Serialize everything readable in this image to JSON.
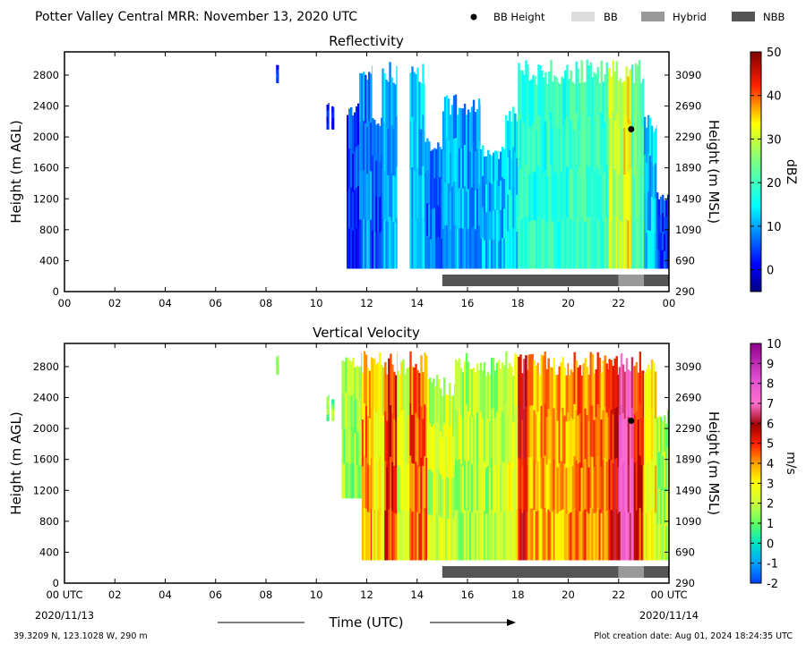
{
  "header": {
    "title": "Potter Valley Central MRR:  November 13, 2020 UTC",
    "legend": [
      {
        "label": "BB Height",
        "kind": "dot",
        "color": "#000000"
      },
      {
        "label": "BB",
        "kind": "swatch",
        "color": "#dddddd"
      },
      {
        "label": "Hybrid",
        "kind": "swatch",
        "color": "#999999"
      },
      {
        "label": "NBB",
        "kind": "swatch",
        "color": "#555555"
      }
    ]
  },
  "footer": {
    "location": "39.3209 N, 123.1028 W, 290 m",
    "created": "Plot creation date: Aug 01, 2024 18:24:35 UTC",
    "xlabel": "Time (UTC)",
    "start_date": "2020/11/13",
    "end_date": "2020/11/14"
  },
  "colors": {
    "bb": "#dddddd",
    "hybrid": "#999999",
    "nbb": "#555555",
    "bb_dot": "#000000"
  },
  "chart_data": [
    {
      "type": "heatmap",
      "title": "Reflectivity",
      "ylabel": "Height (m AGL)",
      "ylabel_right": "Height (m MSL)",
      "colorbar_label": "dBZ",
      "xlim": [
        0,
        24
      ],
      "ylim": [
        0,
        3100
      ],
      "x_ticks": [
        "00",
        "02",
        "04",
        "06",
        "08",
        "10",
        "12",
        "14",
        "16",
        "18",
        "20",
        "22",
        "00"
      ],
      "y_ticks": [
        0,
        400,
        800,
        1200,
        1600,
        2000,
        2400,
        2800
      ],
      "y_ticks_right": [
        290,
        690,
        1090,
        1490,
        1890,
        2290,
        2690,
        3090
      ],
      "colorbar_ticks": [
        0,
        10,
        20,
        30,
        40,
        50
      ],
      "colorbar_range": [
        -5,
        50
      ],
      "colormap": "jet",
      "echo_segments": [
        {
          "start": 8.4,
          "end": 8.5,
          "base": 2700,
          "top": 2950,
          "value": 2
        },
        {
          "start": 10.4,
          "end": 10.5,
          "base": 2100,
          "top": 2450,
          "value": 2
        },
        {
          "start": 10.6,
          "end": 10.7,
          "base": 2100,
          "top": 2400,
          "value": 1
        },
        {
          "start": 11.2,
          "end": 11.7,
          "base": 300,
          "top": 2500,
          "value": 4
        },
        {
          "start": 11.7,
          "end": 12.2,
          "base": 300,
          "top": 3000,
          "value": 8
        },
        {
          "start": 12.2,
          "end": 12.6,
          "base": 300,
          "top": 2300,
          "value": 5
        },
        {
          "start": 12.6,
          "end": 13.2,
          "base": 300,
          "top": 3000,
          "value": 11
        },
        {
          "start": 13.7,
          "end": 14.3,
          "base": 300,
          "top": 3000,
          "value": 12
        },
        {
          "start": 14.3,
          "end": 15.0,
          "base": 300,
          "top": 2000,
          "value": 7
        },
        {
          "start": 15.0,
          "end": 16.5,
          "base": 300,
          "top": 2550,
          "value": 10
        },
        {
          "start": 16.5,
          "end": 17.5,
          "base": 300,
          "top": 1900,
          "value": 11
        },
        {
          "start": 17.5,
          "end": 18.0,
          "base": 300,
          "top": 2400,
          "value": 14
        },
        {
          "start": 18.0,
          "end": 20.0,
          "base": 300,
          "top": 3000,
          "value": 18
        },
        {
          "start": 20.0,
          "end": 21.6,
          "base": 300,
          "top": 3000,
          "value": 20
        },
        {
          "start": 21.6,
          "end": 22.2,
          "base": 300,
          "top": 3000,
          "value": 30
        },
        {
          "start": 22.2,
          "end": 22.5,
          "base": 300,
          "top": 3000,
          "value": 33
        },
        {
          "start": 22.5,
          "end": 23.0,
          "base": 300,
          "top": 3000,
          "value": 22
        },
        {
          "start": 23.0,
          "end": 23.5,
          "base": 300,
          "top": 2300,
          "value": 12
        },
        {
          "start": 23.5,
          "end": 24.0,
          "base": 300,
          "top": 1300,
          "value": 4
        }
      ],
      "bb_height": [
        {
          "time": 22.5,
          "height": 2100
        }
      ],
      "bb_class": [
        {
          "start": 15.0,
          "end": 22.0,
          "type": "NBB"
        },
        {
          "start": 22.0,
          "end": 23.0,
          "type": "Hybrid"
        },
        {
          "start": 23.0,
          "end": 24.0,
          "type": "NBB"
        }
      ]
    },
    {
      "type": "heatmap",
      "title": "Vertical Velocity",
      "ylabel": "Height (m AGL)",
      "ylabel_right": "Height (m MSL)",
      "colorbar_label": "m/s",
      "xlim": [
        0,
        24
      ],
      "ylim": [
        0,
        3100
      ],
      "x_ticks": [
        "00 UTC",
        "02",
        "04",
        "06",
        "08",
        "10",
        "12",
        "14",
        "16",
        "18",
        "20",
        "22",
        "00 UTC"
      ],
      "y_ticks": [
        0,
        400,
        800,
        1200,
        1600,
        2000,
        2400,
        2800
      ],
      "y_ticks_right": [
        290,
        690,
        1090,
        1490,
        1890,
        2290,
        2690,
        3090
      ],
      "colorbar_ticks": [
        -2,
        -1,
        0,
        1,
        2,
        3,
        4,
        5,
        6,
        7,
        8,
        9,
        10
      ],
      "colorbar_range": [
        -2,
        10
      ],
      "colormap": "velocity",
      "echo_segments": [
        {
          "start": 8.4,
          "end": 8.5,
          "base": 2700,
          "top": 2950,
          "value": 1.2
        },
        {
          "start": 10.4,
          "end": 10.5,
          "base": 2100,
          "top": 2450,
          "value": 1.5
        },
        {
          "start": 10.6,
          "end": 10.7,
          "base": 2100,
          "top": 2400,
          "value": 1.3
        },
        {
          "start": 11.0,
          "end": 11.8,
          "base": 1100,
          "top": 3000,
          "value": 1.6
        },
        {
          "start": 11.8,
          "end": 12.2,
          "base": 300,
          "top": 3000,
          "value": 4.0
        },
        {
          "start": 12.2,
          "end": 12.7,
          "base": 300,
          "top": 3000,
          "value": 2.8
        },
        {
          "start": 12.7,
          "end": 13.2,
          "base": 300,
          "top": 3000,
          "value": 5.0
        },
        {
          "start": 13.2,
          "end": 13.7,
          "base": 300,
          "top": 3000,
          "value": 2.5
        },
        {
          "start": 13.7,
          "end": 14.4,
          "base": 300,
          "top": 3000,
          "value": 4.5
        },
        {
          "start": 14.4,
          "end": 15.5,
          "base": 300,
          "top": 2700,
          "value": 2.2
        },
        {
          "start": 15.5,
          "end": 17.5,
          "base": 300,
          "top": 3000,
          "value": 1.8
        },
        {
          "start": 17.5,
          "end": 18.0,
          "base": 300,
          "top": 3000,
          "value": 2.5
        },
        {
          "start": 18.0,
          "end": 18.4,
          "base": 300,
          "top": 3000,
          "value": 5.5
        },
        {
          "start": 18.4,
          "end": 20.0,
          "base": 300,
          "top": 3000,
          "value": 3.8
        },
        {
          "start": 20.0,
          "end": 21.6,
          "base": 300,
          "top": 3000,
          "value": 4.2
        },
        {
          "start": 21.6,
          "end": 22.0,
          "base": 300,
          "top": 3000,
          "value": 5.5
        },
        {
          "start": 22.0,
          "end": 22.6,
          "base": 300,
          "top": 3000,
          "value": 7.0
        },
        {
          "start": 22.6,
          "end": 23.0,
          "base": 300,
          "top": 3000,
          "value": 5.0
        },
        {
          "start": 23.0,
          "end": 23.5,
          "base": 300,
          "top": 3000,
          "value": 3.0
        },
        {
          "start": 23.5,
          "end": 24.0,
          "base": 300,
          "top": 2300,
          "value": 1.8
        }
      ],
      "bb_height": [
        {
          "time": 22.5,
          "height": 2100
        }
      ],
      "bb_class": [
        {
          "start": 15.0,
          "end": 22.0,
          "type": "NBB"
        },
        {
          "start": 22.0,
          "end": 23.0,
          "type": "Hybrid"
        },
        {
          "start": 23.0,
          "end": 24.0,
          "type": "NBB"
        }
      ]
    }
  ]
}
